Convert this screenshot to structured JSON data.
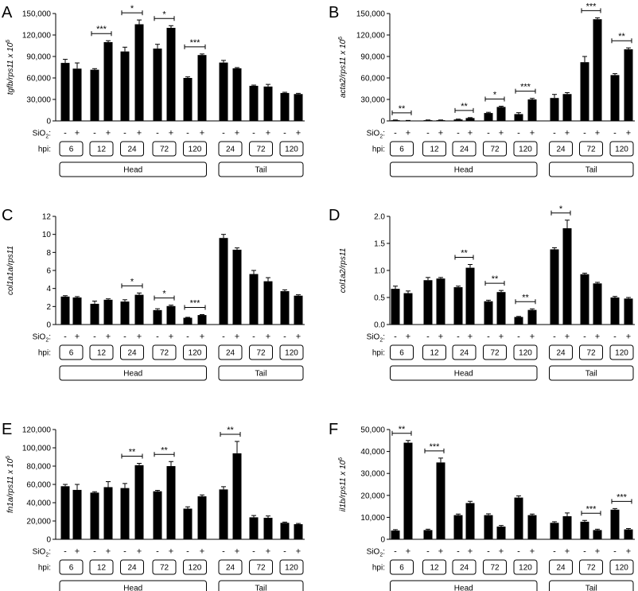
{
  "chart_data": [
    {
      "type": "bar",
      "panel_letter": "A",
      "ylabel_main": "tgfb/rps11 x 10",
      "ylabel_sup": "6",
      "ylim": [
        0,
        150000
      ],
      "yticks": [
        "0",
        "30,000",
        "60,000",
        "90,000",
        "120,000",
        "150,000"
      ],
      "sio2_label": "SiO",
      "sio2_sub": "2",
      "sio2_colon": ":",
      "hpi_label": "hpi:",
      "treatment_signs": [
        "-",
        "+"
      ],
      "groups": [
        {
          "hpi": "6",
          "region": "Head",
          "values": [
            81000,
            73000
          ],
          "errors": [
            5000,
            8000
          ],
          "sig": ""
        },
        {
          "hpi": "12",
          "region": "Head",
          "values": [
            71500,
            110000
          ],
          "errors": [
            1500,
            2000
          ],
          "sig": "***"
        },
        {
          "hpi": "24",
          "region": "Head",
          "values": [
            97000,
            135000
          ],
          "errors": [
            6000,
            6000
          ],
          "sig": "*"
        },
        {
          "hpi": "72",
          "region": "Head",
          "values": [
            101000,
            130000
          ],
          "errors": [
            6000,
            3000
          ],
          "sig": "*"
        },
        {
          "hpi": "120",
          "region": "Head",
          "values": [
            60000,
            92000
          ],
          "errors": [
            1500,
            1500
          ],
          "sig": "***"
        },
        {
          "hpi": "24",
          "region": "Tail",
          "values": [
            81500,
            73500
          ],
          "errors": [
            3000,
            1000
          ],
          "sig": ""
        },
        {
          "hpi": "72",
          "region": "Tail",
          "values": [
            49000,
            48000
          ],
          "errors": [
            1000,
            3000
          ],
          "sig": ""
        },
        {
          "hpi": "120",
          "region": "Tail",
          "values": [
            39000,
            37500
          ],
          "errors": [
            1000,
            1000
          ],
          "sig": ""
        }
      ],
      "regions": [
        "Head",
        "Tail"
      ]
    },
    {
      "type": "bar",
      "panel_letter": "B",
      "ylabel_main": "acta2/rps11 x 10",
      "ylabel_sup": "6",
      "ylim": [
        0,
        150000
      ],
      "yticks": [
        "0",
        "30,000",
        "60,000",
        "90,000",
        "120,000",
        "150,000"
      ],
      "sio2_label": "SiO",
      "sio2_sub": "2",
      "sio2_colon": ":",
      "hpi_label": "hpi:",
      "treatment_signs": [
        "-",
        "+"
      ],
      "groups": [
        {
          "hpi": "6",
          "region": "Head",
          "values": [
            1000,
            500
          ],
          "errors": [
            300,
            200
          ],
          "sig": "**"
        },
        {
          "hpi": "12",
          "region": "Head",
          "values": [
            1000,
            1000
          ],
          "errors": [
            300,
            300
          ],
          "sig": ""
        },
        {
          "hpi": "24",
          "region": "Head",
          "values": [
            2000,
            4000
          ],
          "errors": [
            500,
            600
          ],
          "sig": "**"
        },
        {
          "hpi": "72",
          "region": "Head",
          "values": [
            11000,
            19500
          ],
          "errors": [
            1000,
            1000
          ],
          "sig": "*"
        },
        {
          "hpi": "120",
          "region": "Head",
          "values": [
            9500,
            30000
          ],
          "errors": [
            2000,
            1500
          ],
          "sig": "***"
        },
        {
          "hpi": "24",
          "region": "Tail",
          "values": [
            32000,
            37500
          ],
          "errors": [
            5000,
            2000
          ],
          "sig": ""
        },
        {
          "hpi": "72",
          "region": "Tail",
          "values": [
            82000,
            142000
          ],
          "errors": [
            8000,
            2000
          ],
          "sig": "***"
        },
        {
          "hpi": "120",
          "region": "Tail",
          "values": [
            64000,
            100000
          ],
          "errors": [
            2000,
            2000
          ],
          "sig": "**"
        }
      ],
      "regions": [
        "Head",
        "Tail"
      ]
    },
    {
      "type": "bar",
      "panel_letter": "C",
      "ylabel_main": "col1a1a/rps11",
      "ylabel_sup": "",
      "ylim": [
        0,
        12
      ],
      "yticks": [
        "0",
        "2",
        "4",
        "6",
        "8",
        "10",
        "12"
      ],
      "sio2_label": "SiO",
      "sio2_sub": "2",
      "sio2_colon": ":",
      "hpi_label": "hpi:",
      "treatment_signs": [
        "-",
        "+"
      ],
      "groups": [
        {
          "hpi": "6",
          "region": "Head",
          "values": [
            3.1,
            3.0
          ],
          "errors": [
            0.1,
            0.1
          ],
          "sig": ""
        },
        {
          "hpi": "12",
          "region": "Head",
          "values": [
            2.3,
            2.75
          ],
          "errors": [
            0.3,
            0.1
          ],
          "sig": ""
        },
        {
          "hpi": "24",
          "region": "Head",
          "values": [
            2.55,
            3.3
          ],
          "errors": [
            0.2,
            0.2
          ],
          "sig": "*"
        },
        {
          "hpi": "72",
          "region": "Head",
          "values": [
            1.6,
            2.05
          ],
          "errors": [
            0.15,
            0.1
          ],
          "sig": "*"
        },
        {
          "hpi": "120",
          "region": "Head",
          "values": [
            0.75,
            1.05
          ],
          "errors": [
            0.05,
            0.05
          ],
          "sig": "***"
        },
        {
          "hpi": "24",
          "region": "Tail",
          "values": [
            9.6,
            8.3
          ],
          "errors": [
            0.4,
            0.2
          ],
          "sig": ""
        },
        {
          "hpi": "72",
          "region": "Tail",
          "values": [
            5.6,
            4.8
          ],
          "errors": [
            0.4,
            0.4
          ],
          "sig": ""
        },
        {
          "hpi": "120",
          "region": "Tail",
          "values": [
            3.7,
            3.2
          ],
          "errors": [
            0.15,
            0.1
          ],
          "sig": ""
        }
      ],
      "regions": [
        "Head",
        "Tail"
      ]
    },
    {
      "type": "bar",
      "panel_letter": "D",
      "ylabel_main": "col1a2/rps11",
      "ylabel_sup": "",
      "ylim": [
        0,
        2.0
      ],
      "yticks": [
        "0.0",
        "0.5",
        "1.0",
        "1.5",
        "2.0"
      ],
      "sio2_label": "SiO",
      "sio2_sub": "2",
      "sio2_colon": ":",
      "hpi_label": "hpi:",
      "treatment_signs": [
        "-",
        "+"
      ],
      "groups": [
        {
          "hpi": "6",
          "region": "Head",
          "values": [
            0.66,
            0.58
          ],
          "errors": [
            0.05,
            0.04
          ],
          "sig": ""
        },
        {
          "hpi": "12",
          "region": "Head",
          "values": [
            0.82,
            0.85
          ],
          "errors": [
            0.05,
            0.02
          ],
          "sig": ""
        },
        {
          "hpi": "24",
          "region": "Head",
          "values": [
            0.69,
            1.05
          ],
          "errors": [
            0.02,
            0.06
          ],
          "sig": "**"
        },
        {
          "hpi": "72",
          "region": "Head",
          "values": [
            0.43,
            0.6
          ],
          "errors": [
            0.02,
            0.03
          ],
          "sig": "**"
        },
        {
          "hpi": "120",
          "region": "Head",
          "values": [
            0.14,
            0.27
          ],
          "errors": [
            0.01,
            0.02
          ],
          "sig": "**"
        },
        {
          "hpi": "24",
          "region": "Tail",
          "values": [
            1.39,
            1.78
          ],
          "errors": [
            0.03,
            0.15
          ],
          "sig": "*"
        },
        {
          "hpi": "72",
          "region": "Tail",
          "values": [
            0.93,
            0.76
          ],
          "errors": [
            0.02,
            0.02
          ],
          "sig": ""
        },
        {
          "hpi": "120",
          "region": "Tail",
          "values": [
            0.5,
            0.48
          ],
          "errors": [
            0.02,
            0.02
          ],
          "sig": ""
        }
      ],
      "regions": [
        "Head",
        "Tail"
      ]
    },
    {
      "type": "bar",
      "panel_letter": "E",
      "ylabel_main": "fn1a/rps11 x 10",
      "ylabel_sup": "6",
      "ylim": [
        0,
        120000
      ],
      "yticks": [
        "0",
        "20,000",
        "40,000",
        "60,000",
        "80,000",
        "100,000",
        "120,000"
      ],
      "sio2_label": "SiO",
      "sio2_sub": "2",
      "sio2_colon": ":",
      "hpi_label": "hpi:",
      "treatment_signs": [
        "-",
        "+"
      ],
      "groups": [
        {
          "hpi": "6",
          "region": "Head",
          "values": [
            58000,
            54000
          ],
          "errors": [
            2000,
            6000
          ],
          "sig": ""
        },
        {
          "hpi": "12",
          "region": "Head",
          "values": [
            51000,
            57000
          ],
          "errors": [
            1000,
            6000
          ],
          "sig": ""
        },
        {
          "hpi": "24",
          "region": "Head",
          "values": [
            56000,
            81000
          ],
          "errors": [
            5000,
            2000
          ],
          "sig": "**"
        },
        {
          "hpi": "72",
          "region": "Head",
          "values": [
            52500,
            80000
          ],
          "errors": [
            1000,
            5000
          ],
          "sig": "**"
        },
        {
          "hpi": "120",
          "region": "Head",
          "values": [
            33500,
            47000
          ],
          "errors": [
            2000,
            1500
          ],
          "sig": ""
        },
        {
          "hpi": "24",
          "region": "Tail",
          "values": [
            54500,
            94000
          ],
          "errors": [
            3000,
            13000
          ],
          "sig": "**"
        },
        {
          "hpi": "72",
          "region": "Tail",
          "values": [
            24000,
            23500
          ],
          "errors": [
            2000,
            2000
          ],
          "sig": ""
        },
        {
          "hpi": "120",
          "region": "Tail",
          "values": [
            18000,
            16500
          ],
          "errors": [
            800,
            800
          ],
          "sig": ""
        }
      ],
      "regions": [
        "Head",
        "Tail"
      ]
    },
    {
      "type": "bar",
      "panel_letter": "F",
      "ylabel_main": "il1b/rps11 x 10",
      "ylabel_sup": "6",
      "ylim": [
        0,
        50000
      ],
      "yticks": [
        "0",
        "10,000",
        "20,000",
        "30,000",
        "40,000",
        "50,000"
      ],
      "sio2_label": "SiO",
      "sio2_sub": "2",
      "sio2_colon": ":",
      "hpi_label": "hpi:",
      "treatment_signs": [
        "-",
        "+"
      ],
      "groups": [
        {
          "hpi": "6",
          "region": "Head",
          "values": [
            4000,
            44000
          ],
          "errors": [
            400,
            1000
          ],
          "sig": "**"
        },
        {
          "hpi": "12",
          "region": "Head",
          "values": [
            4200,
            35000
          ],
          "errors": [
            400,
            2000
          ],
          "sig": "***"
        },
        {
          "hpi": "24",
          "region": "Head",
          "values": [
            11000,
            16500
          ],
          "errors": [
            500,
            800
          ],
          "sig": ""
        },
        {
          "hpi": "72",
          "region": "Head",
          "values": [
            11000,
            5800
          ],
          "errors": [
            600,
            500
          ],
          "sig": ""
        },
        {
          "hpi": "120",
          "region": "Head",
          "values": [
            19000,
            11000
          ],
          "errors": [
            800,
            500
          ],
          "sig": ""
        },
        {
          "hpi": "24",
          "region": "Tail",
          "values": [
            7500,
            10500
          ],
          "errors": [
            500,
            1500
          ],
          "sig": ""
        },
        {
          "hpi": "72",
          "region": "Tail",
          "values": [
            8000,
            4200
          ],
          "errors": [
            600,
            400
          ],
          "sig": "***"
        },
        {
          "hpi": "120",
          "region": "Tail",
          "values": [
            13500,
            4500
          ],
          "errors": [
            500,
            400
          ],
          "sig": "***"
        }
      ],
      "regions": [
        "Head",
        "Tail"
      ]
    }
  ]
}
